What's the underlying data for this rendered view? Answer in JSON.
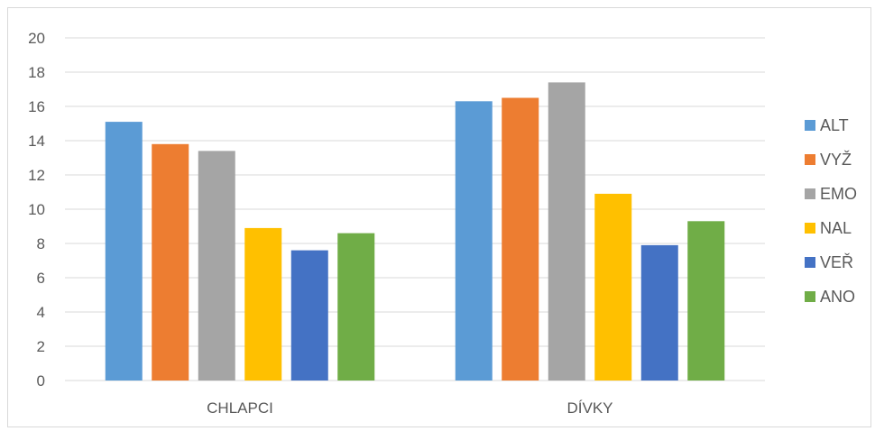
{
  "chart_data": {
    "type": "bar",
    "categories": [
      "CHLAPCI",
      "DÍVKY"
    ],
    "series": [
      {
        "name": "ALT",
        "color": "#5b9bd5",
        "values": [
          15.1,
          16.3
        ]
      },
      {
        "name": "VYŽ",
        "color": "#ed7d31",
        "values": [
          13.8,
          16.5
        ]
      },
      {
        "name": "EMO",
        "color": "#a5a5a5",
        "values": [
          13.4,
          17.4
        ]
      },
      {
        "name": "NAL",
        "color": "#ffc000",
        "values": [
          8.9,
          10.9
        ]
      },
      {
        "name": "VEŘ",
        "color": "#4472c4",
        "values": [
          7.6,
          7.9
        ]
      },
      {
        "name": "ANO",
        "color": "#70ad47",
        "values": [
          8.6,
          9.3
        ]
      }
    ],
    "ylim": [
      0,
      20
    ],
    "yticks": [
      "0",
      "2",
      "4",
      "6",
      "8",
      "10",
      "12",
      "14",
      "16",
      "18",
      "20"
    ],
    "grid": true,
    "legend": "right"
  }
}
